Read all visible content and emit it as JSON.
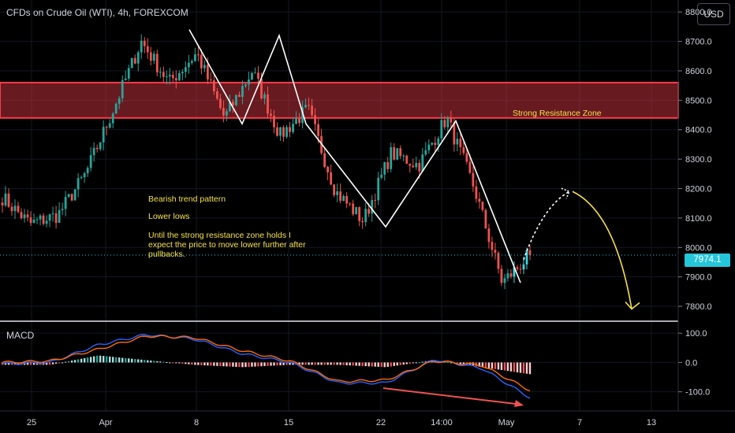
{
  "header": {
    "symbol_title": "CFDs on Crude Oil (WTI), 4h, FOREXCOM",
    "currency_button": "USD"
  },
  "annotations": {
    "zone_label": "Strong Resistance Zone",
    "line1": "Bearish trend pattern",
    "line2": "Lower lows",
    "line3": "Until the strong resistance zone holds I expect the price to move lower further after pullbacks."
  },
  "current_price_label": "7974.1",
  "macd_label": "MACD",
  "colors": {
    "up": "#26a69a",
    "up_bright": "#3ad5e0",
    "down": "#ef5350",
    "zone": "#e53948",
    "annot": "#f5e14a",
    "macd": "#2962ff",
    "signal": "#ff6d00"
  },
  "chart_data": [
    {
      "type": "candlestick",
      "title": "CFDs on Crude Oil (WTI), 4h, FOREXCOM",
      "x_tick_labels": [
        "25",
        "Apr",
        "8",
        "15",
        "22",
        "14:00",
        "May",
        "7",
        "13"
      ],
      "y_tick_labels": [
        "8800.0",
        "8700.0",
        "8600.0",
        "8500.0",
        "8400.0",
        "8300.0",
        "8200.0",
        "8100.0",
        "8000.0",
        "7900.0",
        "7800.0"
      ],
      "ylim": [
        7760,
        8830
      ],
      "resistance_zone": [
        8440,
        8560
      ],
      "current_price": 7974.1,
      "close_path_anchors": [
        8170,
        8080,
        8110,
        8250,
        8470,
        8700,
        8560,
        8660,
        8440,
        8600,
        8380,
        8470,
        8190,
        8090,
        8320,
        8280,
        8440,
        8200,
        7880,
        7974
      ],
      "trend_lines": [
        [
          8740,
          8420,
          8720,
          8420,
          8070,
          8430,
          7880
        ]
      ],
      "projection": {
        "pullback_to": 8190,
        "target": 7780
      }
    },
    {
      "type": "line",
      "title": "MACD",
      "y_tick_labels": [
        "100.0",
        "0.0",
        "-100.0"
      ],
      "ylim": [
        -160,
        130
      ],
      "series": [
        {
          "name": "MACD",
          "anchors": [
            -5,
            0,
            60,
            95,
            80,
            30,
            0,
            -70,
            -70,
            10,
            -20,
            -120
          ]
        },
        {
          "name": "Signal",
          "anchors": [
            0,
            5,
            45,
            90,
            85,
            40,
            5,
            -65,
            -60,
            5,
            -10,
            -95
          ]
        }
      ]
    }
  ]
}
